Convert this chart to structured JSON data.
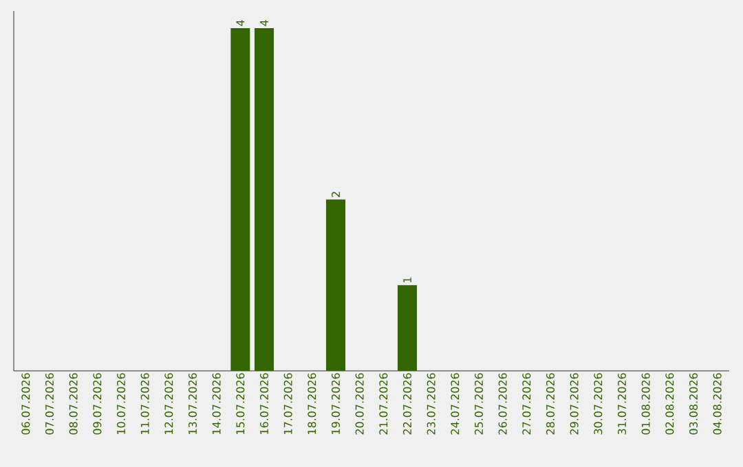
{
  "chart_data": {
    "type": "bar",
    "categories": [
      "06.07.2026",
      "07.07.2026",
      "08.07.2026",
      "09.07.2026",
      "10.07.2026",
      "11.07.2026",
      "12.07.2026",
      "13.07.2026",
      "14.07.2026",
      "15.07.2026",
      "16.07.2026",
      "17.07.2026",
      "18.07.2026",
      "19.07.2026",
      "20.07.2026",
      "21.07.2026",
      "22.07.2026",
      "23.07.2026",
      "24.07.2026",
      "25.07.2026",
      "26.07.2026",
      "27.07.2026",
      "28.07.2026",
      "29.07.2026",
      "30.07.2026",
      "31.07.2026",
      "01.08.2026",
      "02.08.2026",
      "03.08.2026",
      "04.08.2026"
    ],
    "values": [
      0,
      0,
      0,
      0,
      0,
      0,
      0,
      0,
      0,
      4,
      4,
      0,
      0,
      2,
      0,
      0,
      1,
      0,
      0,
      0,
      0,
      0,
      0,
      0,
      0,
      0,
      0,
      0,
      0,
      0
    ],
    "value_labels": [
      null,
      null,
      null,
      null,
      null,
      null,
      null,
      null,
      null,
      "4",
      "4",
      null,
      null,
      "2",
      null,
      null,
      "1",
      null,
      null,
      null,
      null,
      null,
      null,
      null,
      null,
      null,
      null,
      null,
      null,
      null
    ],
    "color": "#336600",
    "grid": false
  }
}
